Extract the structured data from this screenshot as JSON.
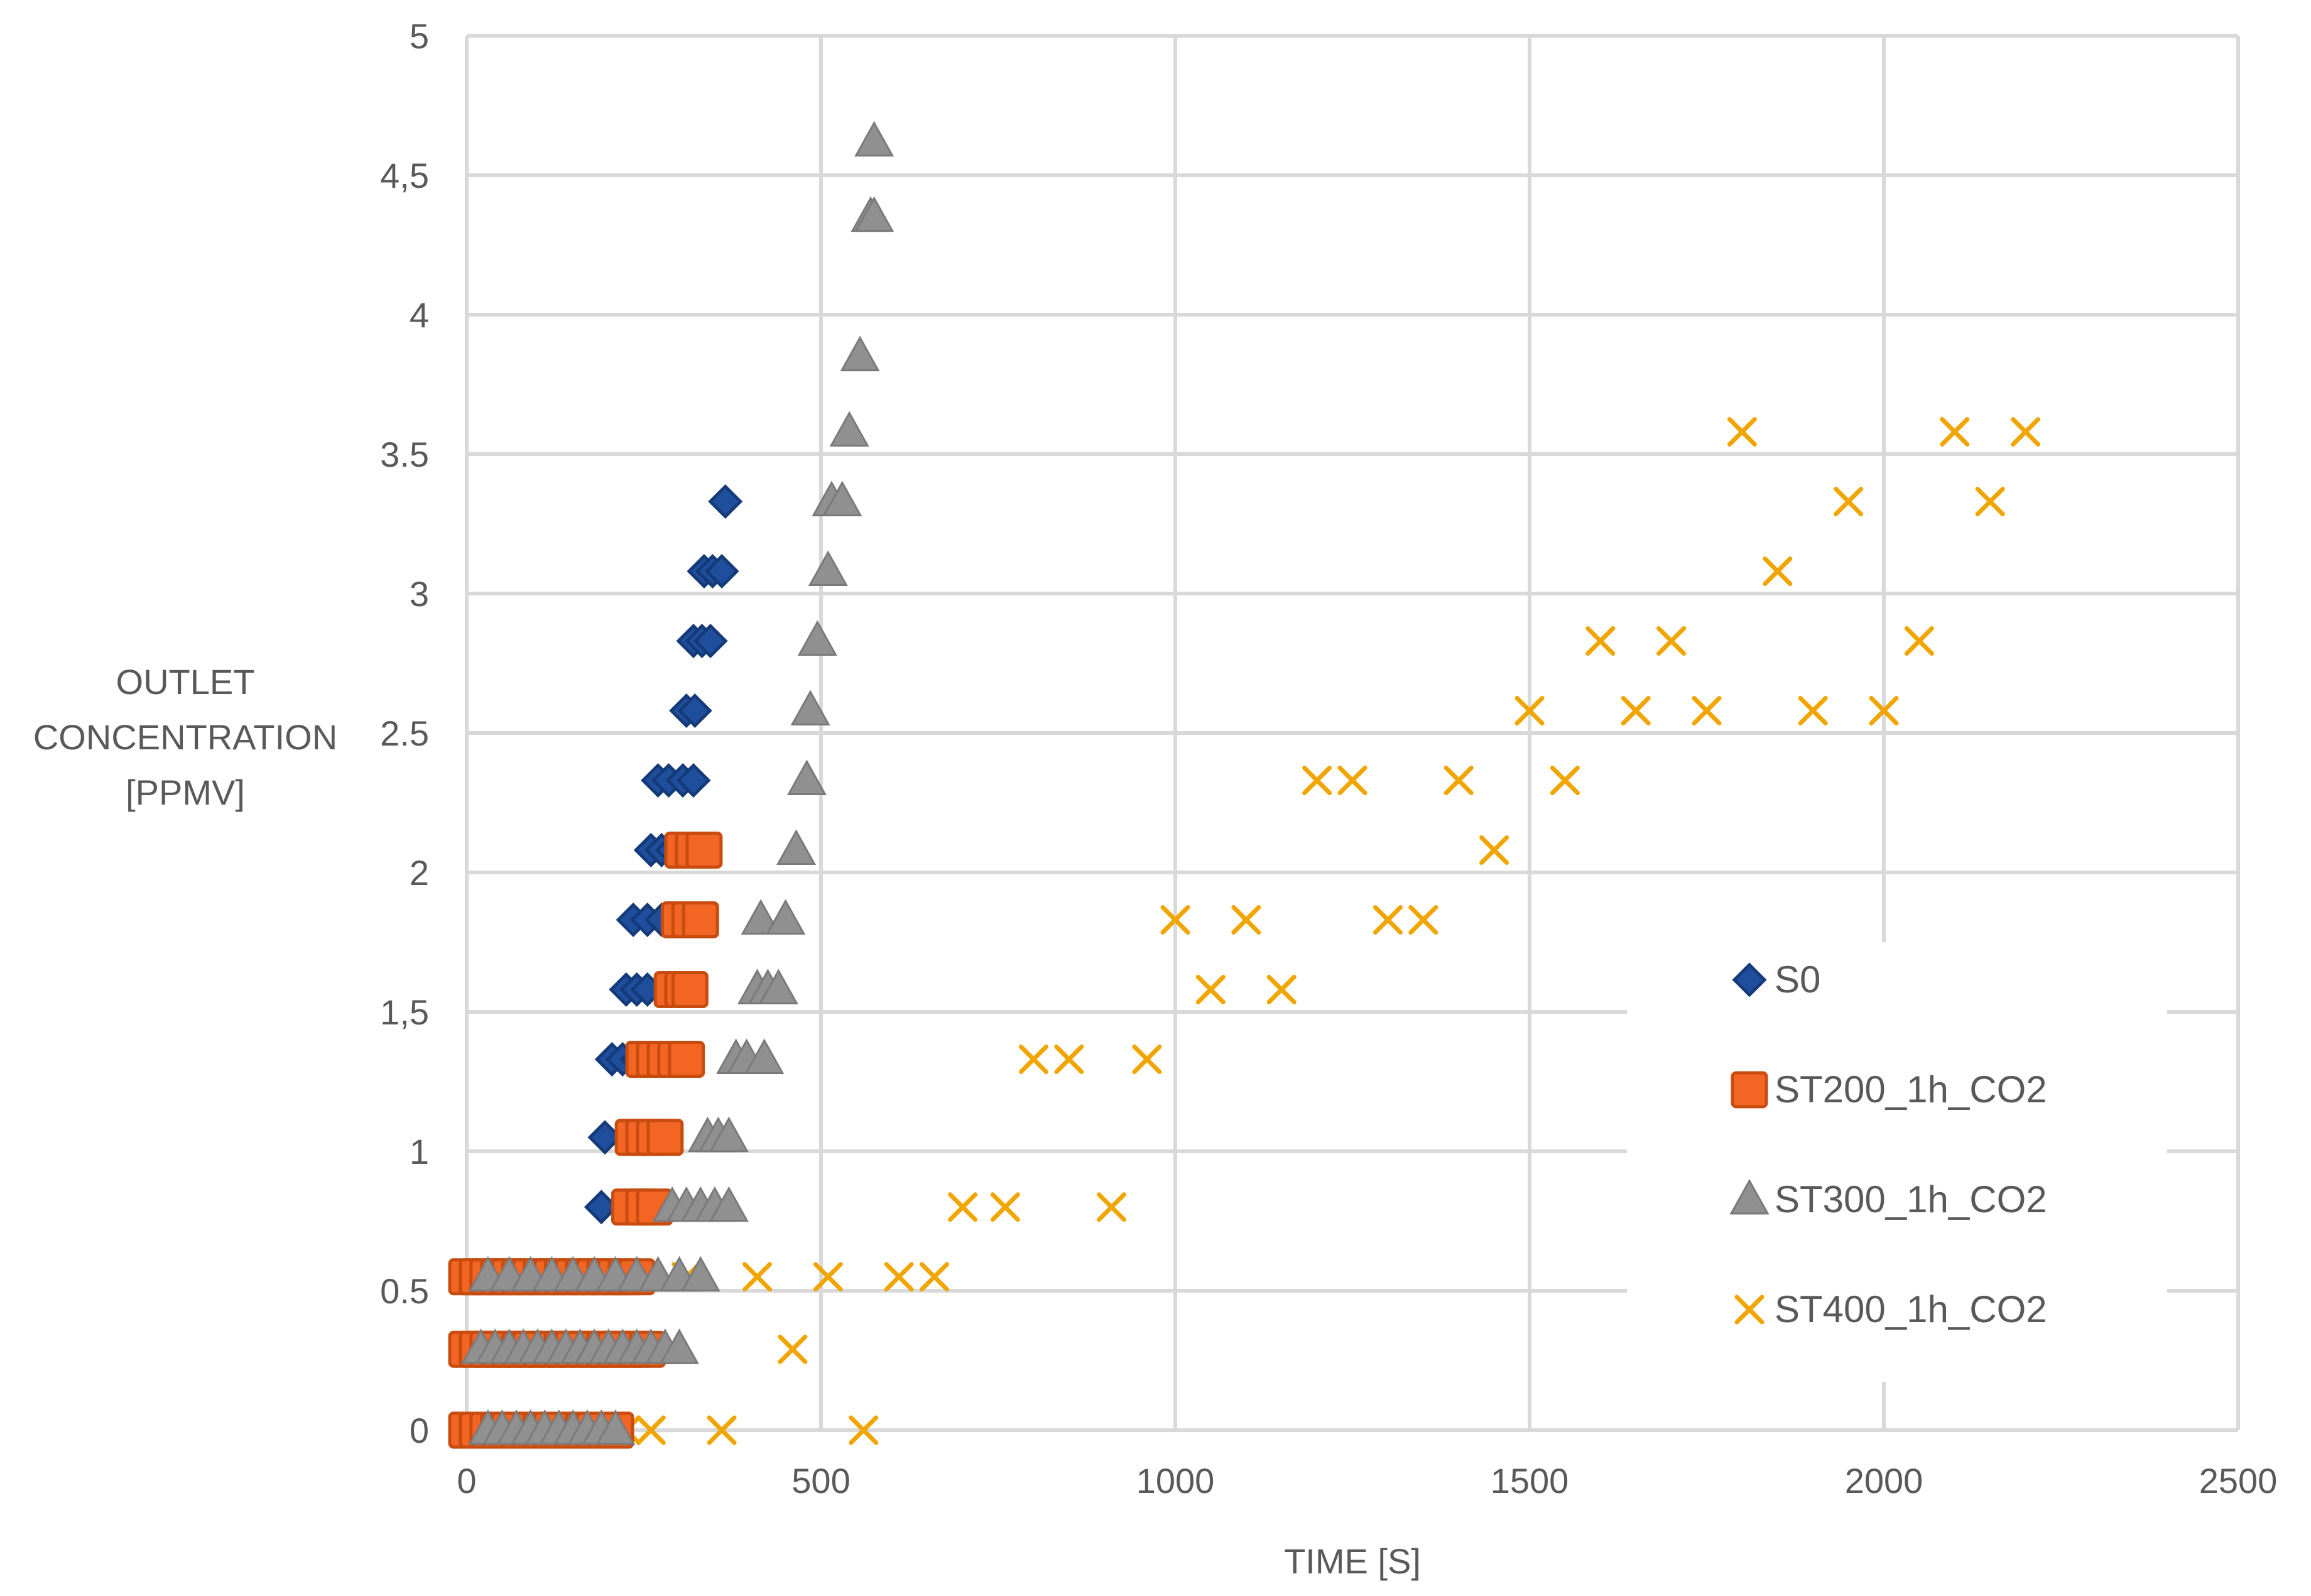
{
  "chart_data": {
    "type": "scatter",
    "title": "",
    "xlabel": "TIME [S]",
    "ylabel_lines": [
      "OUTLET",
      "CONCENTRATION",
      "[PPMV]"
    ],
    "xlim": [
      0,
      2500
    ],
    "ylim": [
      0,
      5
    ],
    "grid": true,
    "legend_position": "right",
    "x_ticks": [
      {
        "value": 0,
        "label": "0"
      },
      {
        "value": 500,
        "label": "500"
      },
      {
        "value": 1000,
        "label": "1000"
      },
      {
        "value": 1500,
        "label": "1500"
      },
      {
        "value": 2000,
        "label": "2000"
      },
      {
        "value": 2500,
        "label": "2500"
      }
    ],
    "y_ticks": [
      {
        "value": 0,
        "label": "0"
      },
      {
        "value": 0.5,
        "label": "0.5"
      },
      {
        "value": 1,
        "label": "1"
      },
      {
        "value": 1.5,
        "label": "1,5"
      },
      {
        "value": 2,
        "label": "2"
      },
      {
        "value": 2.5,
        "label": "2.5"
      },
      {
        "value": 3,
        "label": "3"
      },
      {
        "value": 3.5,
        "label": "3.5"
      },
      {
        "value": 4,
        "label": "4"
      },
      {
        "value": 4.5,
        "label": "4,5"
      },
      {
        "value": 5,
        "label": "5"
      }
    ],
    "series": [
      {
        "name": "ST400_1h_CO2",
        "marker": "x",
        "color": "#f0a500",
        "points": [
          [
            20,
            0
          ],
          [
            40,
            0
          ],
          [
            60,
            0
          ],
          [
            80,
            0
          ],
          [
            100,
            0
          ],
          [
            120,
            0
          ],
          [
            140,
            0
          ],
          [
            160,
            0
          ],
          [
            180,
            0
          ],
          [
            200,
            0
          ],
          [
            225,
            0
          ],
          [
            260,
            0
          ],
          [
            360,
            0
          ],
          [
            560,
            0
          ],
          [
            60,
            0.29
          ],
          [
            110,
            0.29
          ],
          [
            460,
            0.29
          ],
          [
            20,
            0.55
          ],
          [
            70,
            0.55
          ],
          [
            120,
            0.55
          ],
          [
            160,
            0.55
          ],
          [
            310,
            0.55
          ],
          [
            410,
            0.55
          ],
          [
            510,
            0.55
          ],
          [
            610,
            0.55
          ],
          [
            660,
            0.55
          ],
          [
            700,
            0.8
          ],
          [
            760,
            0.8
          ],
          [
            910,
            0.8
          ],
          [
            800,
            1.33
          ],
          [
            850,
            1.33
          ],
          [
            960,
            1.33
          ],
          [
            1050,
            1.58
          ],
          [
            1150,
            1.58
          ],
          [
            1000,
            1.83
          ],
          [
            1100,
            1.83
          ],
          [
            1300,
            1.83
          ],
          [
            1350,
            1.83
          ],
          [
            1450,
            2.08
          ],
          [
            1200,
            2.33
          ],
          [
            1250,
            2.33
          ],
          [
            1400,
            2.33
          ],
          [
            1550,
            2.33
          ],
          [
            1500,
            2.58
          ],
          [
            1650,
            2.58
          ],
          [
            1750,
            2.58
          ],
          [
            1900,
            2.58
          ],
          [
            2000,
            2.58
          ],
          [
            1600,
            2.83
          ],
          [
            1700,
            2.83
          ],
          [
            2050,
            2.83
          ],
          [
            1850,
            3.08
          ],
          [
            1950,
            3.33
          ],
          [
            2150,
            3.33
          ],
          [
            1800,
            3.58
          ],
          [
            2100,
            3.58
          ],
          [
            2200,
            3.58
          ]
        ]
      },
      {
        "name": "S0",
        "marker": "diamond",
        "color": "#1f4e9c",
        "points": [
          [
            0,
            0.55
          ],
          [
            10,
            0.55
          ],
          [
            190,
            0.8
          ],
          [
            195,
            1.05
          ],
          [
            205,
            1.33
          ],
          [
            220,
            1.33
          ],
          [
            240,
            1.33
          ],
          [
            225,
            1.58
          ],
          [
            240,
            1.58
          ],
          [
            255,
            1.58
          ],
          [
            235,
            1.83
          ],
          [
            255,
            1.83
          ],
          [
            275,
            1.83
          ],
          [
            260,
            2.08
          ],
          [
            275,
            2.08
          ],
          [
            290,
            2.08
          ],
          [
            270,
            2.33
          ],
          [
            285,
            2.33
          ],
          [
            305,
            2.33
          ],
          [
            320,
            2.33
          ],
          [
            310,
            2.58
          ],
          [
            322,
            2.58
          ],
          [
            320,
            2.83
          ],
          [
            332,
            2.83
          ],
          [
            344,
            2.83
          ],
          [
            335,
            3.08
          ],
          [
            347,
            3.08
          ],
          [
            360,
            3.08
          ],
          [
            365,
            3.33
          ]
        ]
      },
      {
        "name": "ST200_1h_CO2",
        "marker": "square",
        "color": "#f26522",
        "points": [
          [
            0,
            0
          ],
          [
            15,
            0
          ],
          [
            30,
            0
          ],
          [
            45,
            0
          ],
          [
            60,
            0
          ],
          [
            75,
            0
          ],
          [
            90,
            0
          ],
          [
            105,
            0
          ],
          [
            120,
            0
          ],
          [
            135,
            0
          ],
          [
            150,
            0
          ],
          [
            165,
            0
          ],
          [
            180,
            0
          ],
          [
            195,
            0
          ],
          [
            210,
            0
          ],
          [
            0,
            0.29
          ],
          [
            15,
            0.29
          ],
          [
            30,
            0.29
          ],
          [
            45,
            0.29
          ],
          [
            60,
            0.29
          ],
          [
            75,
            0.29
          ],
          [
            90,
            0.29
          ],
          [
            105,
            0.29
          ],
          [
            120,
            0.29
          ],
          [
            135,
            0.29
          ],
          [
            150,
            0.29
          ],
          [
            165,
            0.29
          ],
          [
            180,
            0.29
          ],
          [
            195,
            0.29
          ],
          [
            210,
            0.29
          ],
          [
            225,
            0.29
          ],
          [
            240,
            0.29
          ],
          [
            255,
            0.29
          ],
          [
            0,
            0.55
          ],
          [
            15,
            0.55
          ],
          [
            30,
            0.55
          ],
          [
            45,
            0.55
          ],
          [
            60,
            0.55
          ],
          [
            75,
            0.55
          ],
          [
            90,
            0.55
          ],
          [
            105,
            0.55
          ],
          [
            120,
            0.55
          ],
          [
            135,
            0.55
          ],
          [
            150,
            0.55
          ],
          [
            165,
            0.55
          ],
          [
            180,
            0.55
          ],
          [
            195,
            0.55
          ],
          [
            210,
            0.55
          ],
          [
            225,
            0.55
          ],
          [
            240,
            0.55
          ],
          [
            230,
            0.8
          ],
          [
            250,
            0.8
          ],
          [
            265,
            0.8
          ],
          [
            235,
            1.05
          ],
          [
            250,
            1.05
          ],
          [
            265,
            1.05
          ],
          [
            280,
            1.05
          ],
          [
            250,
            1.33
          ],
          [
            265,
            1.33
          ],
          [
            280,
            1.33
          ],
          [
            295,
            1.33
          ],
          [
            310,
            1.33
          ],
          [
            290,
            1.58
          ],
          [
            305,
            1.58
          ],
          [
            315,
            1.58
          ],
          [
            300,
            1.83
          ],
          [
            315,
            1.83
          ],
          [
            330,
            1.83
          ],
          [
            305,
            2.08
          ],
          [
            320,
            2.08
          ],
          [
            335,
            2.08
          ]
        ]
      },
      {
        "name": "ST300_1h_CO2",
        "marker": "triangle",
        "color": "#909090",
        "points": [
          [
            30,
            0
          ],
          [
            50,
            0
          ],
          [
            70,
            0
          ],
          [
            90,
            0
          ],
          [
            110,
            0
          ],
          [
            130,
            0
          ],
          [
            150,
            0
          ],
          [
            170,
            0
          ],
          [
            190,
            0
          ],
          [
            210,
            0
          ],
          [
            20,
            0.29
          ],
          [
            40,
            0.29
          ],
          [
            60,
            0.29
          ],
          [
            80,
            0.29
          ],
          [
            100,
            0.29
          ],
          [
            120,
            0.29
          ],
          [
            140,
            0.29
          ],
          [
            160,
            0.29
          ],
          [
            180,
            0.29
          ],
          [
            200,
            0.29
          ],
          [
            220,
            0.29
          ],
          [
            240,
            0.29
          ],
          [
            260,
            0.29
          ],
          [
            280,
            0.29
          ],
          [
            300,
            0.29
          ],
          [
            30,
            0.55
          ],
          [
            60,
            0.55
          ],
          [
            90,
            0.55
          ],
          [
            120,
            0.55
          ],
          [
            150,
            0.55
          ],
          [
            180,
            0.55
          ],
          [
            210,
            0.55
          ],
          [
            240,
            0.55
          ],
          [
            270,
            0.55
          ],
          [
            300,
            0.55
          ],
          [
            330,
            0.55
          ],
          [
            290,
            0.8
          ],
          [
            310,
            0.8
          ],
          [
            330,
            0.8
          ],
          [
            350,
            0.8
          ],
          [
            370,
            0.8
          ],
          [
            340,
            1.05
          ],
          [
            355,
            1.05
          ],
          [
            370,
            1.05
          ],
          [
            380,
            1.33
          ],
          [
            395,
            1.33
          ],
          [
            420,
            1.33
          ],
          [
            410,
            1.58
          ],
          [
            425,
            1.58
          ],
          [
            440,
            1.58
          ],
          [
            415,
            1.83
          ],
          [
            450,
            1.83
          ],
          [
            465,
            2.08
          ],
          [
            480,
            2.33
          ],
          [
            485,
            2.58
          ],
          [
            495,
            2.83
          ],
          [
            510,
            3.08
          ],
          [
            515,
            3.33
          ],
          [
            530,
            3.33
          ],
          [
            540,
            3.58
          ],
          [
            555,
            3.85
          ],
          [
            570,
            4.35
          ],
          [
            575,
            4.35
          ],
          [
            575,
            4.62
          ]
        ]
      }
    ],
    "legend_order": [
      "S0",
      "ST200_1h_CO2",
      "ST300_1h_CO2",
      "ST400_1h_CO2"
    ]
  }
}
